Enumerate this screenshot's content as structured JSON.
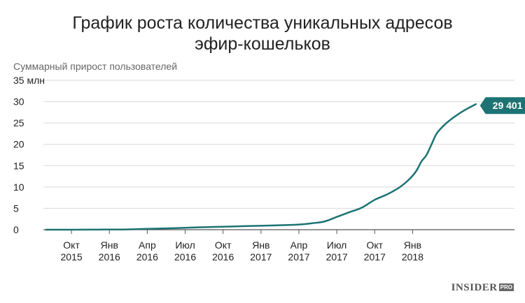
{
  "title": {
    "line1": "График роста количества уникальных адресов",
    "line2": "эфир-кошельков"
  },
  "chart_data": {
    "type": "line",
    "title": "График роста количества уникальных адресов эфир-кошельков",
    "subtitle": "Суммарный прирост пользователей",
    "y_unit_label": "35 млн",
    "ylim": [
      0,
      35
    ],
    "y_ticks": [
      0,
      5,
      10,
      15,
      20,
      25,
      30,
      35
    ],
    "x_ticks": [
      {
        "month": "Окт",
        "year": "2015",
        "t": 2
      },
      {
        "month": "Янв",
        "year": "2016",
        "t": 5
      },
      {
        "month": "Апр",
        "year": "2016",
        "t": 8
      },
      {
        "month": "Июл",
        "year": "2016",
        "t": 11
      },
      {
        "month": "Окт",
        "year": "2016",
        "t": 14
      },
      {
        "month": "Янв",
        "year": "2017",
        "t": 17
      },
      {
        "month": "Апр",
        "year": "2017",
        "t": 20
      },
      {
        "month": "Июл",
        "year": "2017",
        "t": 23
      },
      {
        "month": "Окт",
        "year": "2017",
        "t": 26
      },
      {
        "month": "Янв",
        "year": "2018",
        "t": 29
      }
    ],
    "series": [
      {
        "color": "#1d7373",
        "points": [
          [
            0,
            0.0
          ],
          [
            2,
            0.01
          ],
          [
            4,
            0.03
          ],
          [
            6,
            0.05
          ],
          [
            8,
            0.2
          ],
          [
            10,
            0.35
          ],
          [
            12,
            0.55
          ],
          [
            14,
            0.7
          ],
          [
            16,
            0.85
          ],
          [
            18,
            1.0
          ],
          [
            20,
            1.2
          ],
          [
            21,
            1.5
          ],
          [
            22,
            1.9
          ],
          [
            23,
            3.0
          ],
          [
            24,
            4.1
          ],
          [
            25,
            5.2
          ],
          [
            26,
            7.0
          ],
          [
            27,
            8.3
          ],
          [
            28,
            10.0
          ],
          [
            28.8,
            12.0
          ],
          [
            29.3,
            13.8
          ],
          [
            29.7,
            16.0
          ],
          [
            30.1,
            17.5
          ],
          [
            30.5,
            20.0
          ],
          [
            30.9,
            22.5
          ],
          [
            31.5,
            24.5
          ],
          [
            32.2,
            26.2
          ],
          [
            33.0,
            27.8
          ],
          [
            34.0,
            29.4
          ]
        ]
      }
    ],
    "annotation": {
      "label": "29 401 968",
      "value": 29.401968
    },
    "grid": true
  },
  "logo": {
    "text": "INSIDER",
    "badge": "PRO"
  }
}
